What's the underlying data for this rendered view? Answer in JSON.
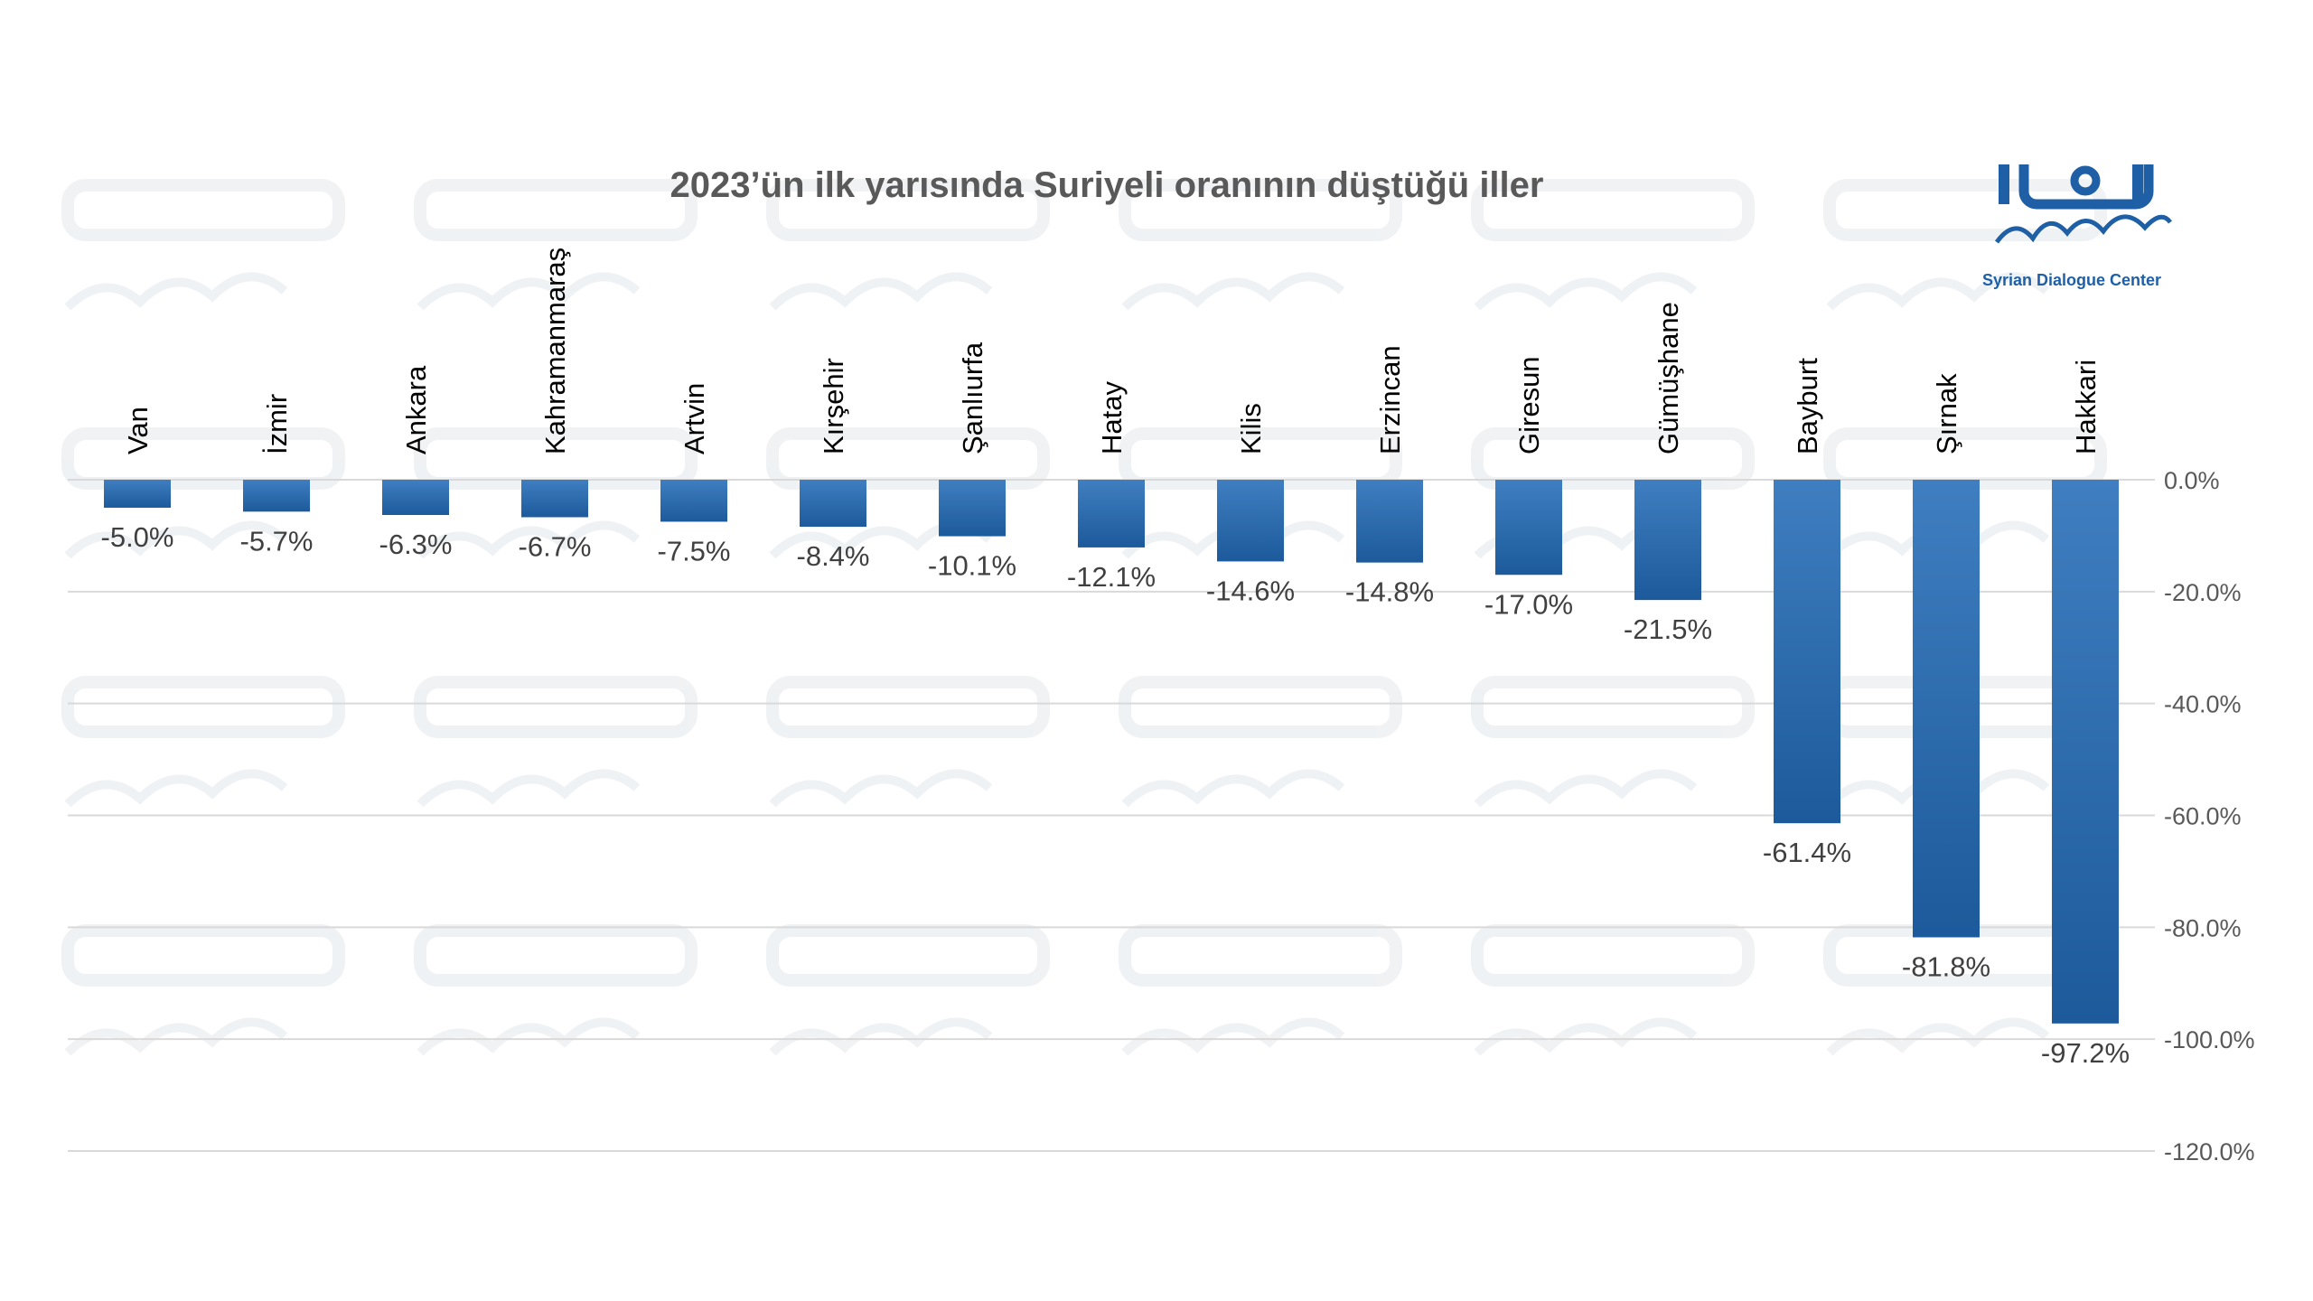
{
  "brand": {
    "name": "Syrian Dialogue Center",
    "accent_color": "#1f5fa6"
  },
  "chart_data": {
    "type": "bar",
    "title": "2023’ün ilk yarısında Suriyeli oranının düştüğü iller",
    "categories": [
      "Van",
      "İzmir",
      "Ankara",
      "Kahramanmaraş",
      "Artvin",
      "Kırşehir",
      "Şanlıurfa",
      "Hatay",
      "Kilis",
      "Erzincan",
      "Giresun",
      "Gümüşhane",
      "Bayburt",
      "Şırnak",
      "Hakkari"
    ],
    "values": [
      -5.0,
      -5.7,
      -6.3,
      -6.7,
      -7.5,
      -8.4,
      -10.1,
      -12.1,
      -14.6,
      -14.8,
      -17.0,
      -21.5,
      -61.4,
      -81.8,
      -97.2
    ],
    "value_labels": [
      "-5.0%",
      "-5.7%",
      "-6.3%",
      "-6.7%",
      "-7.5%",
      "-8.4%",
      "-10.1%",
      "-12.1%",
      "-14.6%",
      "-14.8%",
      "-17.0%",
      "-21.5%",
      "-61.4%",
      "-81.8%",
      "-97.2%"
    ],
    "ylim": [
      -120,
      0
    ],
    "yticks": [
      0,
      -20,
      -40,
      -60,
      -80,
      -100,
      -120
    ],
    "ytick_labels": [
      "0.0%",
      "-20.0%",
      "-40.0%",
      "-60.0%",
      "-80.0%",
      "-100.0%",
      "-120.0%"
    ],
    "y_axis_position": "right",
    "grid": true,
    "legend": "none",
    "bar_color_top": "#3f7ec0",
    "bar_color_bottom": "#1c5a9b"
  }
}
